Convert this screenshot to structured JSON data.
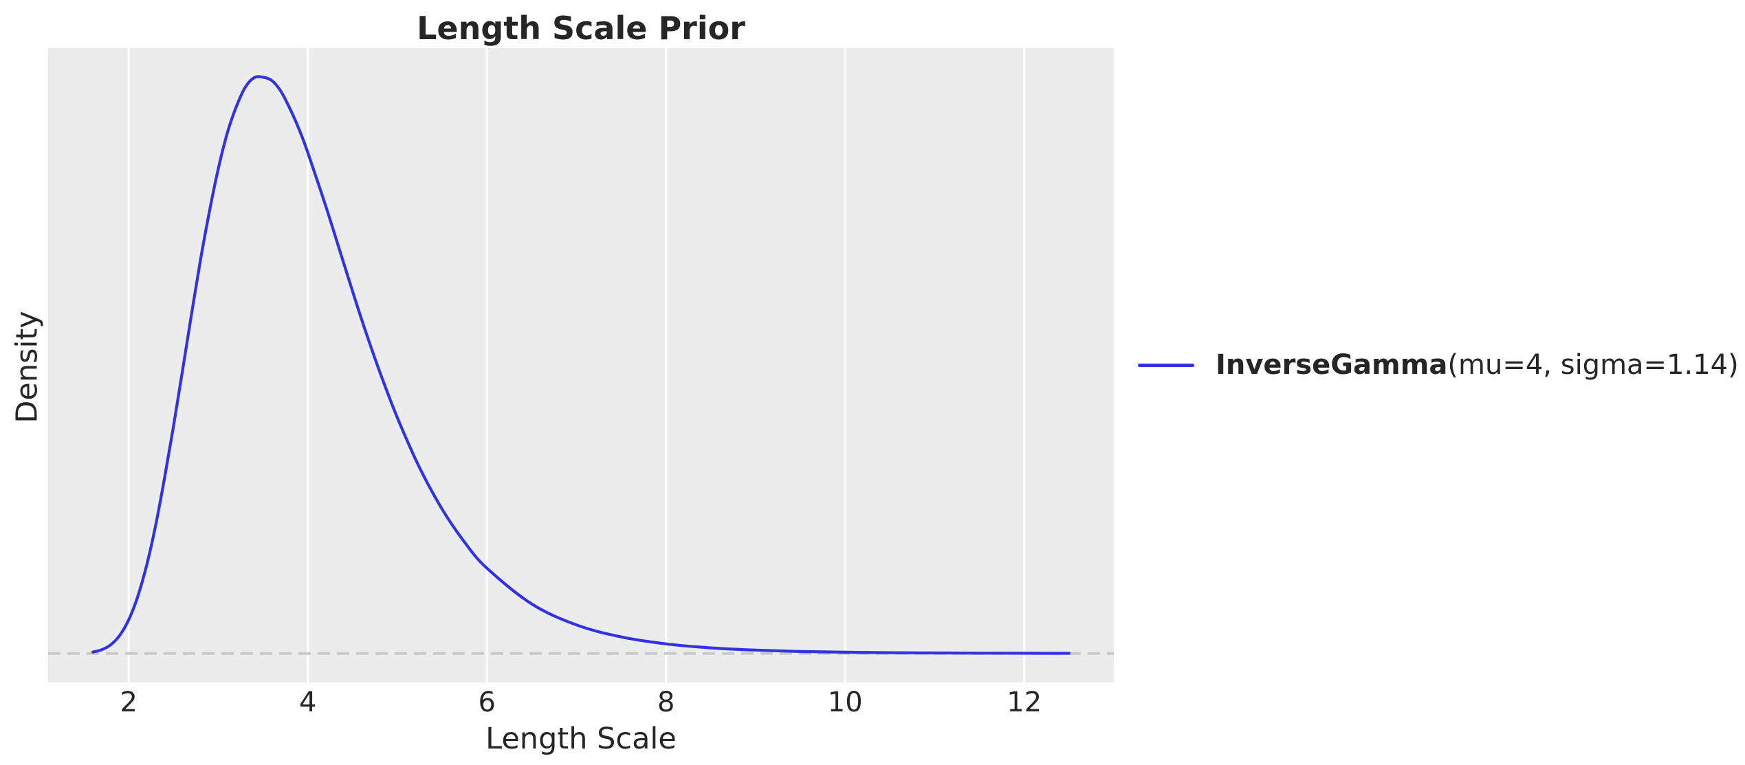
{
  "title": "Length Scale Prior",
  "xlabel": "Length Scale",
  "ylabel": "Density",
  "legend": {
    "name": "InverseGamma",
    "params": "(mu=4, sigma=1.14)"
  },
  "colors": {
    "curve": "#3132e3",
    "axes_bg": "#ececec",
    "grid": "#ffffff",
    "zero_line": "#c9c9c9",
    "text": "#262626"
  },
  "chart_data": {
    "type": "line",
    "title": "Length Scale Prior",
    "xlabel": "Length Scale",
    "ylabel": "Density",
    "legend_entries": [
      "InverseGamma(mu=4, sigma=1.14)"
    ],
    "legend_position": "center-right, outside axes",
    "grid": "vertical white gridlines only, light gray plot background, no spines",
    "xticks": [
      2,
      4,
      6,
      8,
      10,
      12
    ],
    "yticks_shown": false,
    "xlim": [
      1.1,
      13.0
    ],
    "ylim": [
      -0.021,
      0.437
    ],
    "zero_reference_line": {
      "y": 0,
      "style": "dashed",
      "color": "#c9c9c9"
    },
    "series": [
      {
        "name": "InverseGamma(mu=4, sigma=1.14)",
        "distribution": "InverseGamma",
        "parameters": {
          "mu": 4,
          "sigma": 1.14
        },
        "peak": {
          "x": 3.48,
          "density": 0.416
        },
        "x_range_plotted": [
          1.6,
          12.5
        ],
        "x": [
          1.6,
          1.7,
          1.8,
          1.9,
          2.0,
          2.1,
          2.2,
          2.3,
          2.4,
          2.5,
          2.6,
          2.7,
          2.8,
          2.9,
          3.0,
          3.1,
          3.2,
          3.3,
          3.4,
          3.5,
          3.6,
          3.7,
          3.8,
          3.9,
          4.0,
          4.2,
          4.4,
          4.6,
          4.8,
          5.0,
          5.25,
          5.5,
          5.75,
          6.0,
          6.5,
          7.0,
          7.5,
          8.0,
          8.5,
          9.0,
          9.5,
          10.0,
          10.5,
          11.0,
          11.5,
          12.0,
          12.5
        ],
        "y": [
          0.001,
          0.0027,
          0.0063,
          0.0131,
          0.0243,
          0.041,
          0.0636,
          0.0923,
          0.1266,
          0.1642,
          0.2041,
          0.2444,
          0.2836,
          0.3188,
          0.3499,
          0.3756,
          0.3945,
          0.4086,
          0.4156,
          0.416,
          0.4135,
          0.4057,
          0.3933,
          0.3787,
          0.3616,
          0.3229,
          0.2819,
          0.2412,
          0.2039,
          0.1701,
          0.1338,
          0.1041,
          0.0803,
          0.0615,
          0.0357,
          0.0206,
          0.0119,
          0.0069,
          0.004,
          0.0024,
          0.0014,
          0.00086,
          0.00052,
          0.00032,
          0.0002,
          0.00013,
          8e-05
        ]
      }
    ]
  }
}
